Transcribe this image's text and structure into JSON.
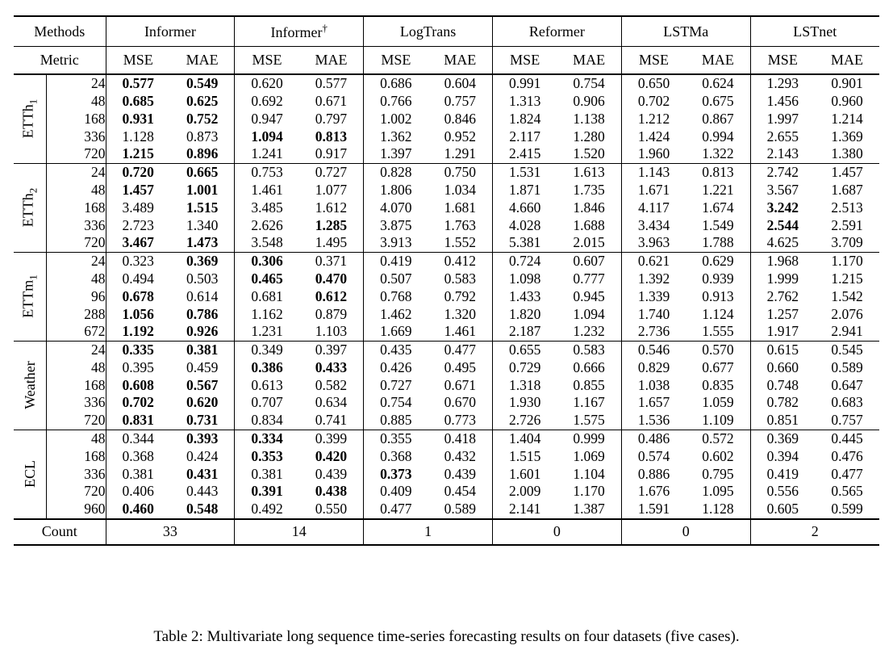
{
  "caption": "Table 2: Multivariate long sequence time-series forecasting results on four datasets (five cases).",
  "table": {
    "methods_label": "Methods",
    "metric_label": "Metric",
    "count_label": "Count",
    "methods": [
      {
        "name": "Informer",
        "sup": ""
      },
      {
        "name": "Informer",
        "sup": "†"
      },
      {
        "name": "LogTrans",
        "sup": ""
      },
      {
        "name": "Reformer",
        "sup": ""
      },
      {
        "name": "LSTMa",
        "sup": ""
      },
      {
        "name": "LSTnet",
        "sup": ""
      }
    ],
    "metrics": [
      "MSE",
      "MAE"
    ],
    "sections": [
      {
        "label_base": "ETTh",
        "label_sub": "1",
        "rows": [
          {
            "horizon": "24",
            "values": [
              "0.577",
              "0.549",
              "0.620",
              "0.577",
              "0.686",
              "0.604",
              "0.991",
              "0.754",
              "0.650",
              "0.624",
              "1.293",
              "0.901"
            ],
            "bold": [
              0,
              1
            ]
          },
          {
            "horizon": "48",
            "values": [
              "0.685",
              "0.625",
              "0.692",
              "0.671",
              "0.766",
              "0.757",
              "1.313",
              "0.906",
              "0.702",
              "0.675",
              "1.456",
              "0.960"
            ],
            "bold": [
              0,
              1
            ]
          },
          {
            "horizon": "168",
            "values": [
              "0.931",
              "0.752",
              "0.947",
              "0.797",
              "1.002",
              "0.846",
              "1.824",
              "1.138",
              "1.212",
              "0.867",
              "1.997",
              "1.214"
            ],
            "bold": [
              0,
              1
            ]
          },
          {
            "horizon": "336",
            "values": [
              "1.128",
              "0.873",
              "1.094",
              "0.813",
              "1.362",
              "0.952",
              "2.117",
              "1.280",
              "1.424",
              "0.994",
              "2.655",
              "1.369"
            ],
            "bold": [
              2,
              3
            ]
          },
          {
            "horizon": "720",
            "values": [
              "1.215",
              "0.896",
              "1.241",
              "0.917",
              "1.397",
              "1.291",
              "2.415",
              "1.520",
              "1.960",
              "1.322",
              "2.143",
              "1.380"
            ],
            "bold": [
              0,
              1
            ]
          }
        ]
      },
      {
        "label_base": "ETTh",
        "label_sub": "2",
        "rows": [
          {
            "horizon": "24",
            "values": [
              "0.720",
              "0.665",
              "0.753",
              "0.727",
              "0.828",
              "0.750",
              "1.531",
              "1.613",
              "1.143",
              "0.813",
              "2.742",
              "1.457"
            ],
            "bold": [
              0,
              1
            ]
          },
          {
            "horizon": "48",
            "values": [
              "1.457",
              "1.001",
              "1.461",
              "1.077",
              "1.806",
              "1.034",
              "1.871",
              "1.735",
              "1.671",
              "1.221",
              "3.567",
              "1.687"
            ],
            "bold": [
              0,
              1
            ]
          },
          {
            "horizon": "168",
            "values": [
              "3.489",
              "1.515",
              "3.485",
              "1.612",
              "4.070",
              "1.681",
              "4.660",
              "1.846",
              "4.117",
              "1.674",
              "3.242",
              "2.513"
            ],
            "bold": [
              1,
              10
            ]
          },
          {
            "horizon": "336",
            "values": [
              "2.723",
              "1.340",
              "2.626",
              "1.285",
              "3.875",
              "1.763",
              "4.028",
              "1.688",
              "3.434",
              "1.549",
              "2.544",
              "2.591"
            ],
            "bold": [
              3,
              10
            ]
          },
          {
            "horizon": "720",
            "values": [
              "3.467",
              "1.473",
              "3.548",
              "1.495",
              "3.913",
              "1.552",
              "5.381",
              "2.015",
              "3.963",
              "1.788",
              "4.625",
              "3.709"
            ],
            "bold": [
              0,
              1
            ]
          }
        ]
      },
      {
        "label_base": "ETTm",
        "label_sub": "1",
        "rows": [
          {
            "horizon": "24",
            "values": [
              "0.323",
              "0.369",
              "0.306",
              "0.371",
              "0.419",
              "0.412",
              "0.724",
              "0.607",
              "0.621",
              "0.629",
              "1.968",
              "1.170"
            ],
            "bold": [
              1,
              2
            ]
          },
          {
            "horizon": "48",
            "values": [
              "0.494",
              "0.503",
              "0.465",
              "0.470",
              "0.507",
              "0.583",
              "1.098",
              "0.777",
              "1.392",
              "0.939",
              "1.999",
              "1.215"
            ],
            "bold": [
              2,
              3
            ]
          },
          {
            "horizon": "96",
            "values": [
              "0.678",
              "0.614",
              "0.681",
              "0.612",
              "0.768",
              "0.792",
              "1.433",
              "0.945",
              "1.339",
              "0.913",
              "2.762",
              "1.542"
            ],
            "bold": [
              0,
              3
            ]
          },
          {
            "horizon": "288",
            "values": [
              "1.056",
              "0.786",
              "1.162",
              "0.879",
              "1.462",
              "1.320",
              "1.820",
              "1.094",
              "1.740",
              "1.124",
              "1.257",
              "2.076"
            ],
            "bold": [
              0,
              1
            ]
          },
          {
            "horizon": "672",
            "values": [
              "1.192",
              "0.926",
              "1.231",
              "1.103",
              "1.669",
              "1.461",
              "2.187",
              "1.232",
              "2.736",
              "1.555",
              "1.917",
              "2.941"
            ],
            "bold": [
              0,
              1
            ]
          }
        ]
      },
      {
        "label_base": "Weather",
        "label_sub": "",
        "rows": [
          {
            "horizon": "24",
            "values": [
              "0.335",
              "0.381",
              "0.349",
              "0.397",
              "0.435",
              "0.477",
              "0.655",
              "0.583",
              "0.546",
              "0.570",
              "0.615",
              "0.545"
            ],
            "bold": [
              0,
              1
            ]
          },
          {
            "horizon": "48",
            "values": [
              "0.395",
              "0.459",
              "0.386",
              "0.433",
              "0.426",
              "0.495",
              "0.729",
              "0.666",
              "0.829",
              "0.677",
              "0.660",
              "0.589"
            ],
            "bold": [
              2,
              3
            ]
          },
          {
            "horizon": "168",
            "values": [
              "0.608",
              "0.567",
              "0.613",
              "0.582",
              "0.727",
              "0.671",
              "1.318",
              "0.855",
              "1.038",
              "0.835",
              "0.748",
              "0.647"
            ],
            "bold": [
              0,
              1
            ]
          },
          {
            "horizon": "336",
            "values": [
              "0.702",
              "0.620",
              "0.707",
              "0.634",
              "0.754",
              "0.670",
              "1.930",
              "1.167",
              "1.657",
              "1.059",
              "0.782",
              "0.683"
            ],
            "bold": [
              0,
              1
            ]
          },
          {
            "horizon": "720",
            "values": [
              "0.831",
              "0.731",
              "0.834",
              "0.741",
              "0.885",
              "0.773",
              "2.726",
              "1.575",
              "1.536",
              "1.109",
              "0.851",
              "0.757"
            ],
            "bold": [
              0,
              1
            ]
          }
        ]
      },
      {
        "label_base": "ECL",
        "label_sub": "",
        "rows": [
          {
            "horizon": "48",
            "values": [
              "0.344",
              "0.393",
              "0.334",
              "0.399",
              "0.355",
              "0.418",
              "1.404",
              "0.999",
              "0.486",
              "0.572",
              "0.369",
              "0.445"
            ],
            "bold": [
              1,
              2
            ]
          },
          {
            "horizon": "168",
            "values": [
              "0.368",
              "0.424",
              "0.353",
              "0.420",
              "0.368",
              "0.432",
              "1.515",
              "1.069",
              "0.574",
              "0.602",
              "0.394",
              "0.476"
            ],
            "bold": [
              2,
              3
            ]
          },
          {
            "horizon": "336",
            "values": [
              "0.381",
              "0.431",
              "0.381",
              "0.439",
              "0.373",
              "0.439",
              "1.601",
              "1.104",
              "0.886",
              "0.795",
              "0.419",
              "0.477"
            ],
            "bold": [
              1,
              4
            ]
          },
          {
            "horizon": "720",
            "values": [
              "0.406",
              "0.443",
              "0.391",
              "0.438",
              "0.409",
              "0.454",
              "2.009",
              "1.170",
              "1.676",
              "1.095",
              "0.556",
              "0.565"
            ],
            "bold": [
              2,
              3
            ]
          },
          {
            "horizon": "960",
            "values": [
              "0.460",
              "0.548",
              "0.492",
              "0.550",
              "0.477",
              "0.589",
              "2.141",
              "1.387",
              "1.591",
              "1.128",
              "0.605",
              "0.599"
            ],
            "bold": [
              0,
              1
            ]
          }
        ]
      }
    ],
    "count_values": [
      "33",
      "14",
      "1",
      "0",
      "0",
      "2"
    ]
  }
}
